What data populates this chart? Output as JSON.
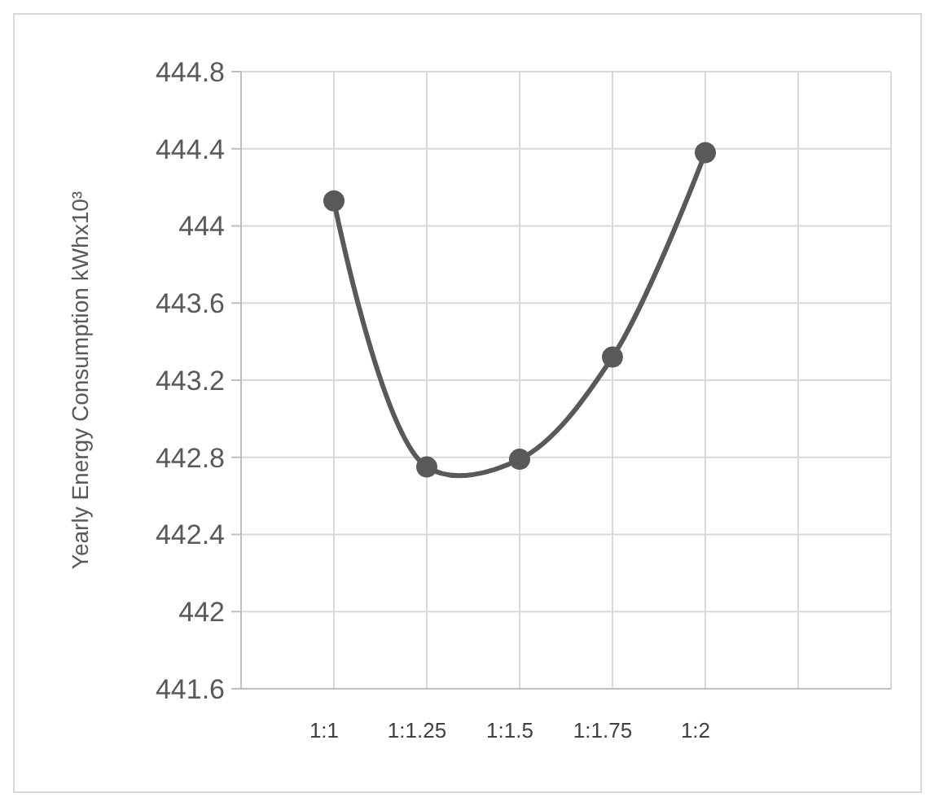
{
  "chart_data": {
    "type": "line",
    "ylabel": "Yearly Energy Consumption kWhx10³",
    "categories": [
      "1:1",
      "1:1.25",
      "1:1.5",
      "1:1.75",
      "1:2"
    ],
    "series": [
      {
        "color": "#595959",
        "values": [
          444.13,
          442.75,
          442.79,
          443.32,
          444.38
        ]
      }
    ],
    "ylim": [
      441.6,
      444.8
    ],
    "yticks": [
      441.6,
      442,
      442.4,
      442.8,
      443.2,
      443.6,
      444,
      444.4,
      444.8
    ],
    "grid": true,
    "marker": "circle",
    "line_style": "solid"
  }
}
